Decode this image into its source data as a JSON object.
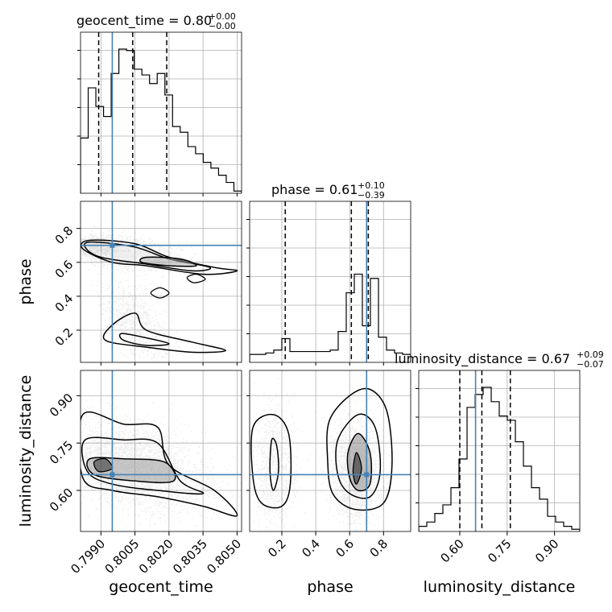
{
  "chart_data": {
    "type": "corner",
    "parameters": [
      "geocent_time",
      "phase",
      "luminosity_distance"
    ],
    "axis_labels": {
      "geocent_time": "geocent_time",
      "phase": "phase",
      "luminosity_distance": "luminosity_distance"
    },
    "truths": {
      "geocent_time": 0.7995,
      "phase": 0.7,
      "luminosity_distance": 0.65
    },
    "ranges": {
      "geocent_time": [
        0.7981,
        0.8052
      ],
      "phase": [
        0.01,
        0.96
      ],
      "luminosity_distance": [
        0.47,
        0.98
      ]
    },
    "ticks": {
      "geocent_time": [
        0.799,
        0.8005,
        0.802,
        0.8035,
        0.805
      ],
      "phase": [
        0.2,
        0.4,
        0.6,
        0.8
      ],
      "luminosity_distance": [
        0.6,
        0.75,
        0.9
      ]
    },
    "tick_labels": {
      "geocent_time": [
        "0.7990",
        "0.8005",
        "0.8020",
        "0.8035",
        "0.8050"
      ],
      "phase": [
        "0.2",
        "0.4",
        "0.6",
        "0.8"
      ],
      "luminosity_distance": [
        "0.60",
        "0.75",
        "0.90"
      ]
    },
    "titles": [
      {
        "param": "geocent_time",
        "name": "geocent_time",
        "value": "0.80",
        "plus": "+0.00",
        "minus": "−0.00"
      },
      {
        "param": "phase",
        "name": "phase",
        "value": "0.61",
        "plus": "+0.10",
        "minus": "−0.39"
      },
      {
        "param": "luminosity_distance",
        "name": "luminosity_distance",
        "value": "0.67",
        "plus": "+0.09",
        "minus": "−0.07"
      }
    ],
    "quantiles": {
      "geocent_time": [
        0.7989,
        0.8004,
        0.8019
      ],
      "phase": [
        0.22,
        0.61,
        0.71
      ],
      "luminosity_distance": [
        0.6,
        0.67,
        0.76
      ]
    },
    "histograms": {
      "geocent_time": {
        "edges_range": [
          0.7981,
          0.8052
        ],
        "counts": [
          0.38,
          0.73,
          0.6,
          0.53,
          0.83,
          1.0,
          0.99,
          0.86,
          0.82,
          0.76,
          0.83,
          0.68,
          0.46,
          0.42,
          0.32,
          0.27,
          0.21,
          0.17,
          0.12,
          0.07,
          0.01
        ]
      },
      "phase": {
        "edges_range": [
          0.01,
          0.96
        ],
        "counts": [
          0.05,
          0.05,
          0.06,
          0.08,
          0.16,
          0.07,
          0.07,
          0.07,
          0.07,
          0.07,
          0.08,
          0.21,
          0.48,
          0.61,
          0.25,
          0.58,
          0.17,
          0.08,
          0.06,
          0.05
        ]
      },
      "luminosity_distance": {
        "edges_range": [
          0.47,
          0.98
        ],
        "counts": [
          0.03,
          0.06,
          0.12,
          0.18,
          0.3,
          0.5,
          0.86,
          0.95,
          1.0,
          0.9,
          0.8,
          0.77,
          0.62,
          0.45,
          0.3,
          0.22,
          0.1,
          0.06,
          0.03,
          0.01
        ]
      }
    }
  }
}
